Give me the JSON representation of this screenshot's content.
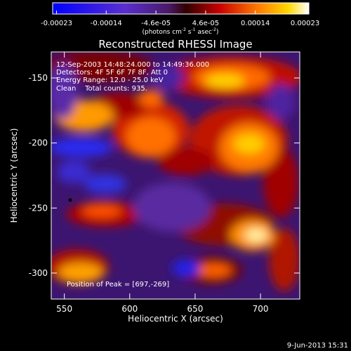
{
  "chart_data": {
    "type": "heatmap",
    "title": "Reconstructed RHESSI Image",
    "xlabel": "Heliocentric X (arcsec)",
    "ylabel": "Heliocentric Y (arcsec)",
    "xlim": [
      540,
      730
    ],
    "ylim": [
      -320,
      -130
    ],
    "x_ticks": [
      "550",
      "600",
      "650",
      "700"
    ],
    "y_ticks": [
      "-150",
      "-200",
      "-250",
      "-300"
    ],
    "colorbar": {
      "ticks": [
        "-0.00023",
        "-0.00014",
        "-4.6e-05",
        "4.6e-05",
        "0.00014",
        "0.00023"
      ],
      "unit_prefix": "(photons cm",
      "unit_exp1": "-2",
      "unit_mid": " s",
      "unit_exp2": "-1",
      "unit_mid2": " asec",
      "unit_exp3": "-2",
      "unit_suffix": ")",
      "range": [
        -0.00023,
        0.00023
      ]
    },
    "annotations": [
      "12-Sep-2003 14:48:24.000 to 14:49:36.000",
      "Detectors: 4F 5F 6F 7F 8F, Att 0",
      "Energy Range: 12.0 - 25.0 keV",
      "Clean    Total counts: 935."
    ],
    "peak_label": "Position of Peak = [697,-269]",
    "peak": [
      697,
      -269
    ]
  },
  "footer": {
    "date": "9-Jun-2013 15:31"
  }
}
